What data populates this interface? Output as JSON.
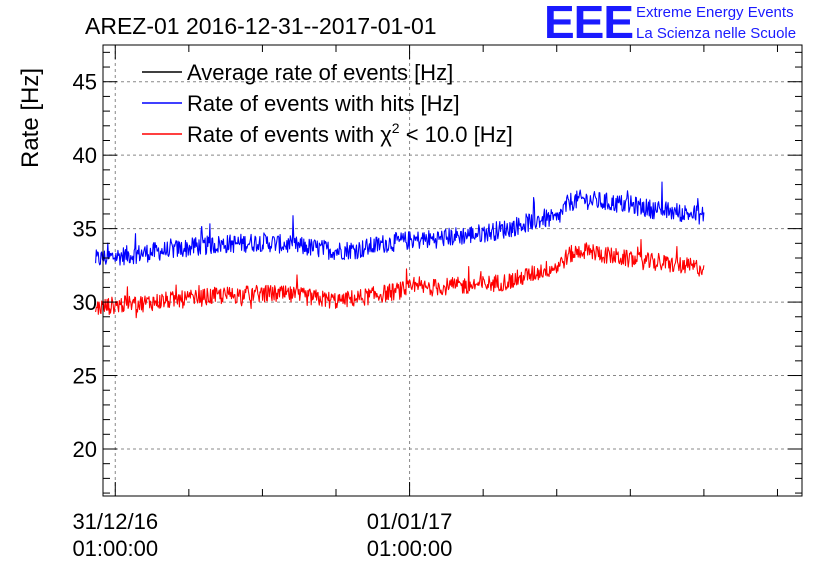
{
  "brand": {
    "logo": "EEE",
    "line1": "Extreme Energy Events",
    "line2": "La Scienza nelle Scuole",
    "color": "#1a1aff"
  },
  "chart_data": {
    "type": "line",
    "title": "AREZ-01 2016-12-31--2017-01-01",
    "ylabel": "Rate [Hz]",
    "xlabel": "",
    "ylim": [
      16.8,
      47.5
    ],
    "yticks": [
      20,
      25,
      30,
      35,
      40,
      45
    ],
    "xlim_hours": [
      -0.5,
      28.0
    ],
    "xtick_labels": [
      {
        "hour": 0,
        "date": "31/12/16",
        "time": "01:00:00"
      },
      {
        "hour": 12,
        "date": "01/01/17",
        "time": "01:00:00"
      }
    ],
    "minor_tick_step_hours": 3,
    "grid": true,
    "legend_position": "top-left",
    "series": [
      {
        "name": "Average rate of events [Hz]",
        "color": "#000000",
        "visible": false,
        "x_hours": [],
        "values": []
      },
      {
        "name": "Rate of events with hits [Hz]",
        "color": "#0000ff",
        "x_hours": [
          -0.8,
          0,
          1,
          2,
          3,
          4,
          5,
          6,
          7,
          8,
          9,
          10,
          11,
          12,
          13,
          14,
          15,
          16,
          17,
          17.5,
          18,
          18.5,
          19,
          19.5,
          20,
          21,
          22,
          23,
          24
        ],
        "values": [
          32.9,
          33.1,
          33.3,
          33.5,
          33.7,
          33.9,
          34.0,
          34.1,
          33.9,
          33.7,
          33.5,
          33.6,
          34.0,
          34.2,
          34.3,
          34.5,
          34.7,
          35.0,
          35.5,
          35.7,
          35.6,
          36.8,
          37.0,
          36.9,
          36.8,
          36.6,
          36.3,
          36.1,
          35.9
        ],
        "noise": 0.65
      },
      {
        "name": "Rate of events with χ² < 10.0 [Hz]",
        "legend_parts": {
          "before": "Rate of events with ",
          "chi": "χ",
          "sup": "2",
          "after": " < 10.0 [Hz]"
        },
        "color": "#ff0000",
        "x_hours": [
          -0.8,
          0,
          1,
          2,
          3,
          4,
          5,
          6,
          7,
          8,
          9,
          10,
          11,
          12,
          13,
          14,
          15,
          16,
          17,
          17.5,
          18,
          18.5,
          19,
          19.5,
          20,
          21,
          22,
          23,
          24
        ],
        "values": [
          29.6,
          29.8,
          29.9,
          30.1,
          30.2,
          30.4,
          30.5,
          30.6,
          30.5,
          30.3,
          30.1,
          30.3,
          30.6,
          30.9,
          31.0,
          31.1,
          31.2,
          31.4,
          31.9,
          32.2,
          32.4,
          33.2,
          33.5,
          33.4,
          33.2,
          32.9,
          32.7,
          32.5,
          32.3
        ],
        "noise": 0.6
      }
    ]
  }
}
